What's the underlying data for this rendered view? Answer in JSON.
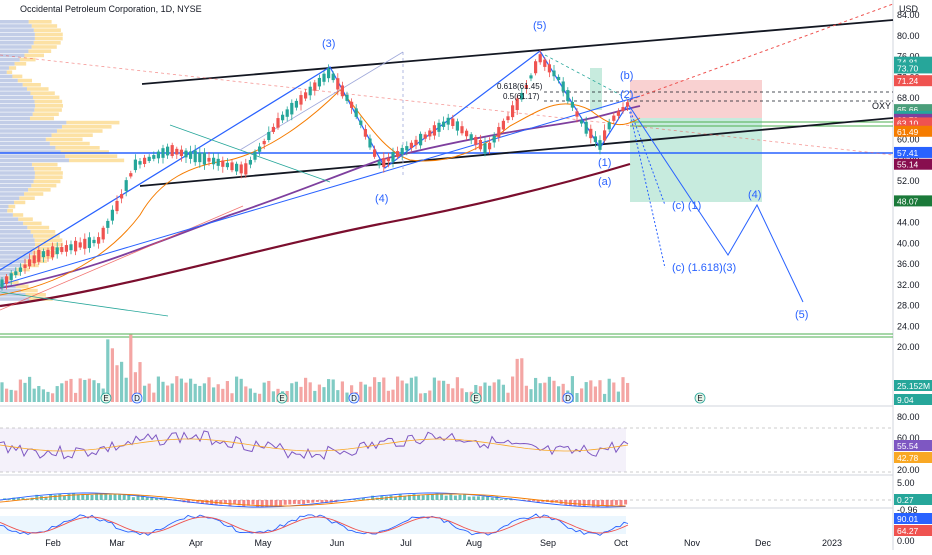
{
  "header": {
    "title": "Occidental Petroleum Corporation, 1D, NYSE"
  },
  "chart_data": {
    "type": "candlestick",
    "symbol": "OXY",
    "currency": "USD",
    "interval": "1D",
    "exchange": "NYSE",
    "price_axis": {
      "ticks": [
        84.0,
        80.0,
        76.0,
        72.0,
        68.0,
        64.0,
        60.0,
        56.0,
        52.0,
        48.0,
        44.0,
        40.0,
        36.0,
        32.0,
        28.0,
        24.0,
        20.0
      ]
    },
    "time_axis": {
      "labels": [
        "Feb",
        "Mar",
        "Apr",
        "May",
        "Jun",
        "Jul",
        "Aug",
        "Sep",
        "Oct",
        "Nov",
        "Dec",
        "2023"
      ]
    },
    "price_tags": [
      {
        "value": "74.81",
        "color": "#26a69a"
      },
      {
        "value": "73.70",
        "color": "#26a69a"
      },
      {
        "value": "71.24",
        "color": "#ef5350"
      },
      {
        "value": "66.17",
        "color": "#ffffff"
      },
      {
        "value": "65.66",
        "color": "#4a9e7a"
      },
      {
        "value": "64.36",
        "color": "#26a69a"
      },
      {
        "value": "63.79",
        "color": "#7e3f9e"
      },
      {
        "value": "63.10",
        "color": "#ef5350"
      },
      {
        "value": "61.74",
        "color": "#ef5350"
      },
      {
        "value": "61.49",
        "color": "#f57c00"
      },
      {
        "value": "57.41",
        "color": "#2962ff"
      },
      {
        "value": "55.14",
        "color": "#880e4f"
      },
      {
        "value": "48.07",
        "color": "#1b7a3a"
      }
    ],
    "symbol_label": "OXY",
    "fib_labels": [
      "0.618(61.45)",
      "0.5(61.17)"
    ],
    "wave_labels": {
      "wave3_top": "(3)",
      "wave4_low": "(4)",
      "wave5_top": "(5)",
      "wave1_low": "(1)",
      "wave_a": "(a)",
      "wave_b": "(b)",
      "wave2": "(2)",
      "c1": "(c) (1)",
      "c1618": "(c) (1.618)(3)",
      "proj4": "(4)",
      "proj5": "(5)"
    },
    "volume": {
      "last_label": "25.152M"
    },
    "events": {
      "earnings": "E",
      "dividend": "D"
    },
    "extra_pane_value": "9.04",
    "rsi": {
      "ticks": [
        "80.00",
        "60.00",
        "20.00"
      ],
      "values": [
        "55.54",
        "42.78"
      ]
    },
    "macd": {
      "ticks": [
        "5.00",
        "0.00"
      ],
      "values": [
        "0.27",
        "-0.96"
      ]
    },
    "stoch": {
      "ticks": [
        "0.00"
      ],
      "values": [
        "90.01",
        "64.27"
      ]
    },
    "legend_position": "none",
    "grid": false
  }
}
